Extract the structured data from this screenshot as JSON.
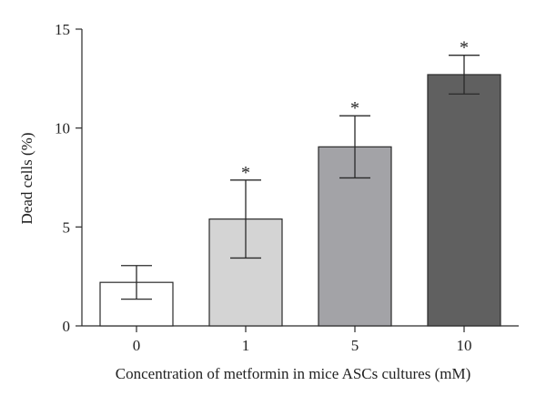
{
  "chart_data": {
    "type": "bar",
    "categories": [
      "0",
      "1",
      "5",
      "10"
    ],
    "values": [
      2.2,
      5.4,
      9.05,
      12.7
    ],
    "errors": [
      0.85,
      1.97,
      1.57,
      0.98
    ],
    "significance": [
      "",
      "*",
      "*",
      "*"
    ],
    "bar_colors": [
      "#ffffff",
      "#d4d4d4",
      "#a3a3a7",
      "#606060"
    ],
    "xlabel": "Concentration of metformin in mice ASCs cultures (mM)",
    "ylabel": "Dead cells (%)",
    "ylim": [
      0,
      15
    ],
    "yticks": [
      0,
      5,
      10,
      15
    ],
    "grid": false,
    "legend": "none"
  }
}
